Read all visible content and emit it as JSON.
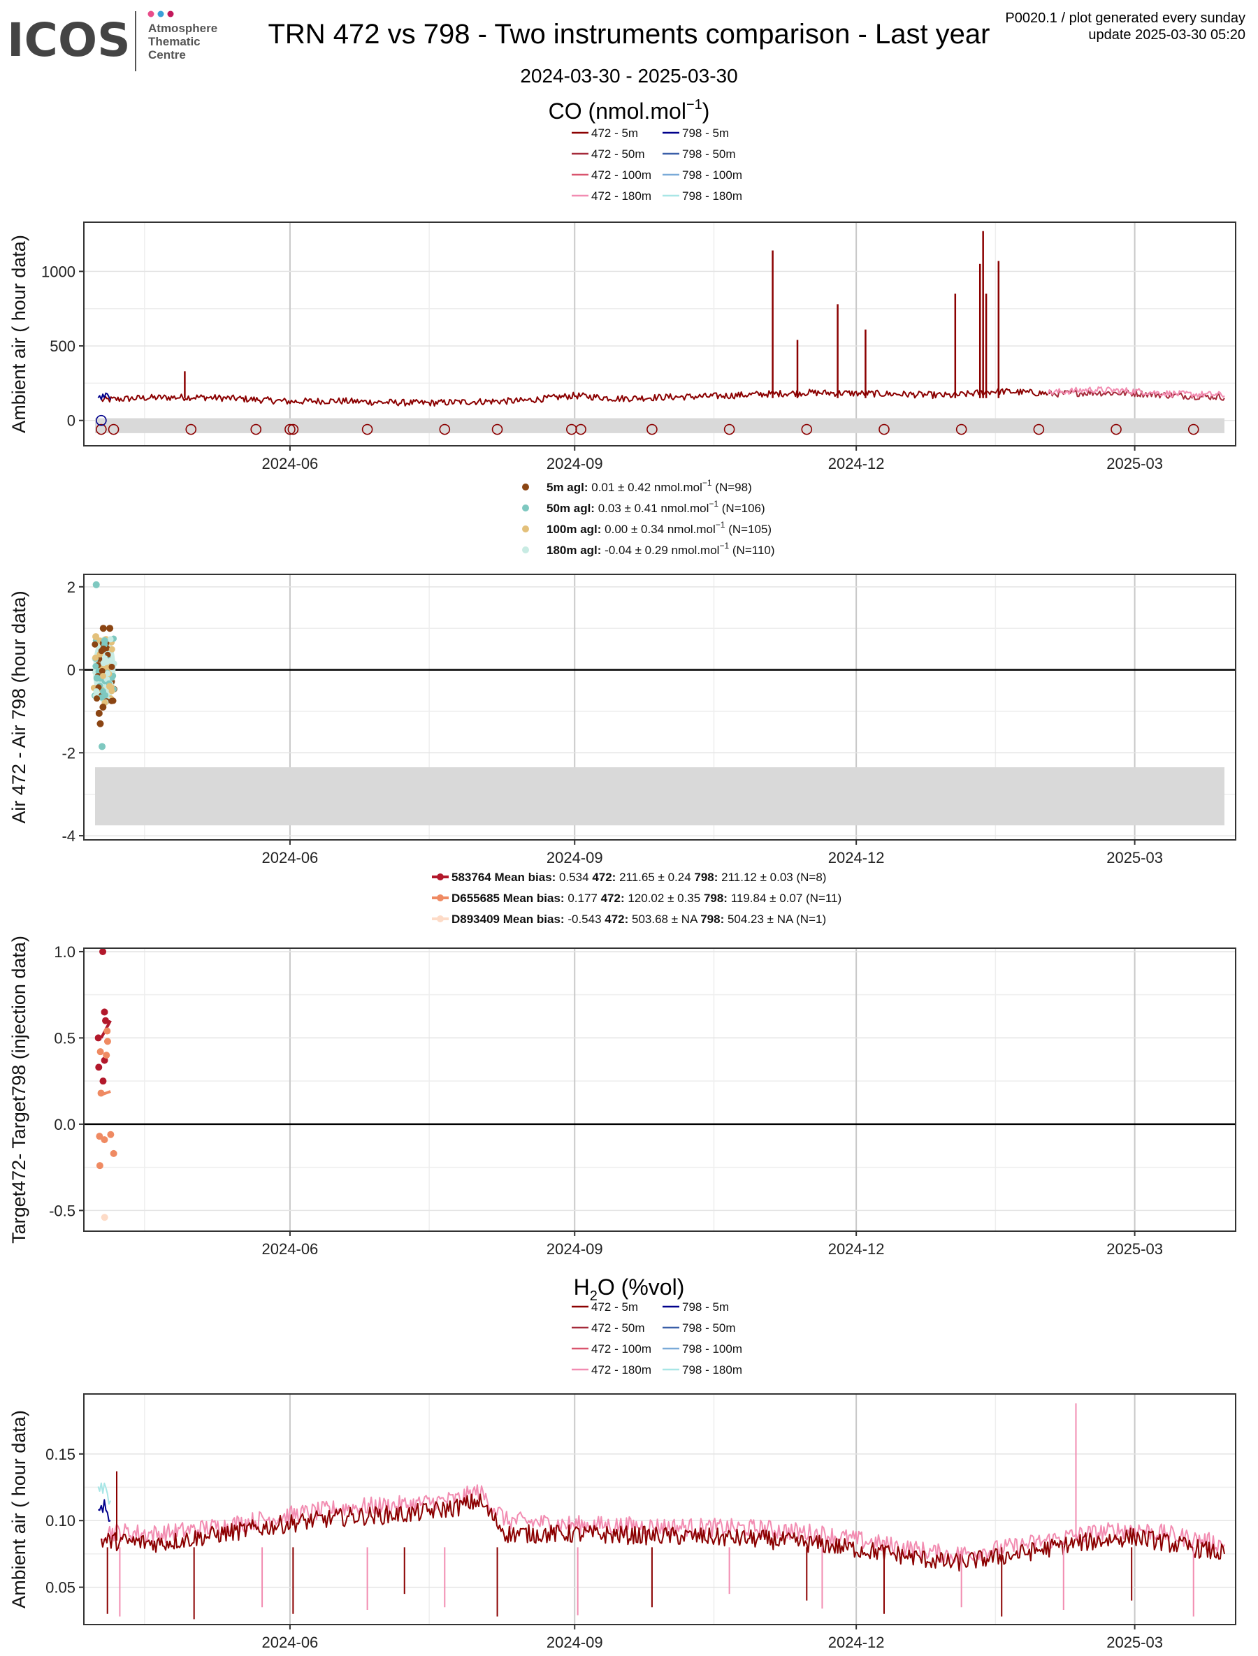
{
  "header": {
    "logo_text": "ICOS",
    "logo_sub": [
      "Atmosphere",
      "Thematic",
      "Centre"
    ],
    "logo_dot_colors": [
      "#e84d8a",
      "#3aa0d8",
      "#c2185b"
    ],
    "title": "TRN 472 vs 798 - Two instruments comparison - Last year",
    "date_range": "2024-03-30 - 2025-03-30",
    "meta_line1": "P0020.1 / plot generated every sunday",
    "meta_line2": "update  2025-03-30 05:20"
  },
  "x_axis": {
    "start": "2024-03-30",
    "end": "2025-03-30",
    "ticks": [
      "2024-06-01",
      "2024-09-01",
      "2024-12-01",
      "2025-03-01"
    ],
    "tick_labels": [
      "2024-06",
      "2024-09",
      "2024-12",
      "2025-03"
    ]
  },
  "chart_data": [
    {
      "type": "line",
      "title_base": "CO (nmol.mol",
      "title_exp": "−1",
      "title_end": ")",
      "ylabel": "Ambient air ( hour data)",
      "ylim": [
        -170,
        1330
      ],
      "yticks": [
        0,
        500,
        1000
      ],
      "legend": [
        {
          "name": "472 - 5m",
          "color": "#8b0000"
        },
        {
          "name": "798 - 5m",
          "color": "#00008b"
        },
        {
          "name": "472 - 50m",
          "color": "#a52a3a"
        },
        {
          "name": "798 - 50m",
          "color": "#3a5fa8"
        },
        {
          "name": "472 - 100m",
          "color": "#d9546e"
        },
        {
          "name": "798 - 100m",
          "color": "#7aaad8"
        },
        {
          "name": "472 - 180m",
          "color": "#f28cb1"
        },
        {
          "name": "798 - 180m",
          "color": "#a8e6e6"
        }
      ],
      "series": [
        {
          "name": "472 - 5m",
          "color": "#8b0000",
          "x": [
            "2024-04-01",
            "2024-04-15",
            "2024-05-01",
            "2024-05-15",
            "2024-06-01",
            "2024-06-15",
            "2024-07-01",
            "2024-07-15",
            "2024-08-01",
            "2024-08-15",
            "2024-09-01",
            "2024-09-15",
            "2024-10-01",
            "2024-10-15",
            "2024-11-01",
            "2024-11-15",
            "2024-12-01",
            "2024-12-15",
            "2025-01-01",
            "2025-01-15",
            "2025-02-01"
          ],
          "y": [
            130,
            145,
            150,
            140,
            120,
            125,
            115,
            110,
            120,
            125,
            160,
            140,
            150,
            155,
            170,
            180,
            175,
            170,
            160,
            190,
            175
          ]
        },
        {
          "name": "472 - 50m",
          "color": "#a52a3a",
          "x": [
            "2025-02-01",
            "2025-02-15",
            "2025-03-01",
            "2025-03-15",
            "2025-03-30"
          ],
          "y": [
            170,
            180,
            175,
            160,
            150
          ]
        },
        {
          "name": "472 - 180m",
          "color": "#f28cb1",
          "x": [
            "2025-02-01",
            "2025-02-15",
            "2025-03-01",
            "2025-03-15",
            "2025-03-30"
          ],
          "y": [
            180,
            200,
            190,
            170,
            165
          ]
        },
        {
          "name": "798 - 5m",
          "color": "#00008b",
          "x": [
            "2024-03-31",
            "2024-04-02",
            "2024-04-04"
          ],
          "y": [
            150,
            160,
            140
          ]
        }
      ],
      "peaks": {
        "x": [
          "2024-04-28",
          "2024-11-04",
          "2024-11-12",
          "2024-11-25",
          "2024-12-04",
          "2025-01-02",
          "2025-01-10",
          "2025-01-11",
          "2025-01-12",
          "2025-01-16"
        ],
        "y": [
          330,
          1140,
          540,
          780,
          610,
          850,
          1050,
          1270,
          850,
          1070
        ]
      },
      "band": [
        -85,
        15
      ],
      "calibration_x": [
        "2024-04-01",
        "2024-04-05",
        "2024-04-30",
        "2024-05-21",
        "2024-06-01",
        "2024-06-02",
        "2024-06-26",
        "2024-07-21",
        "2024-08-07",
        "2024-08-31",
        "2024-09-03",
        "2024-09-26",
        "2024-10-21",
        "2024-11-15",
        "2024-12-10",
        "2025-01-04",
        "2025-01-29",
        "2025-02-23",
        "2025-03-20"
      ],
      "calibration_y": -60,
      "open_circle_798": {
        "x": "2024-04-01",
        "y": 0
      }
    },
    {
      "type": "scatter",
      "ylabel": "Air 472 - Air 798 (hour data)",
      "ylim": [
        -4.1,
        2.3
      ],
      "yticks": [
        -4,
        -2,
        0,
        2
      ],
      "legend": [
        {
          "height": "5m agl:",
          "stats": "0.01 ± 0.42 nmol.mol",
          "n": "(N=98)",
          "color": "#8b4513"
        },
        {
          "height": "50m agl:",
          "stats": "0.03 ± 0.41 nmol.mol",
          "n": "(N=106)",
          "color": "#7ec8c0"
        },
        {
          "height": "100m agl:",
          "stats": "0.00 ± 0.34 nmol.mol",
          "n": "(N=105)",
          "color": "#e3c07a"
        },
        {
          "height": "180m agl:",
          "stats": "-0.04 ± 0.29 nmol.mol",
          "n": "(N=110)",
          "color": "#c8ebe3"
        }
      ],
      "legend_exp": "−1",
      "points": [
        {
          "x": "2024-03-31",
          "y": 2.05,
          "color": "#7ec8c0"
        },
        {
          "x": "2024-04-01",
          "y": 1.0,
          "color": "#8b4513"
        },
        {
          "x": "2024-04-03",
          "y": 1.0,
          "color": "#8b4513"
        },
        {
          "x": "2024-03-31",
          "y": 0.8,
          "color": "#e3c07a"
        },
        {
          "x": "2024-04-02",
          "y": 0.7,
          "color": "#7ec8c0"
        },
        {
          "x": "2024-04-01",
          "y": 0.5,
          "color": "#8b4513"
        },
        {
          "x": "2024-04-02",
          "y": 0.2,
          "color": "#c8ebe3"
        },
        {
          "x": "2024-03-31",
          "y": -0.2,
          "color": "#7ec8c0"
        },
        {
          "x": "2024-04-03",
          "y": -0.4,
          "color": "#e3c07a"
        },
        {
          "x": "2024-04-01",
          "y": -0.9,
          "color": "#8b4513"
        },
        {
          "x": "2024-03-31",
          "y": -1.05,
          "color": "#8b4513"
        },
        {
          "x": "2024-04-01",
          "y": -1.3,
          "color": "#8b4513"
        },
        {
          "x": "2024-04-02",
          "y": -1.85,
          "color": "#7ec8c0"
        }
      ],
      "band": [
        -3.75,
        -2.35
      ]
    },
    {
      "type": "scatter",
      "ylabel": "Target472- Target798 (injection data)",
      "ylim": [
        -0.62,
        1.02
      ],
      "yticks": [
        -0.5,
        0.0,
        0.5,
        1.0
      ],
      "ytick_labels": [
        "-0.5",
        "0.0",
        "0.5",
        "1.0"
      ],
      "legend": [
        {
          "id": "583764",
          "bias": "0.534",
          "v472": "211.65 ± 0.24",
          "v798": "211.12 ± 0.03",
          "n": "(N=8)",
          "color": "#b2182b"
        },
        {
          "id": "D655685",
          "bias": "0.177",
          "v472": "120.02 ± 0.35",
          "v798": "119.84 ± 0.07",
          "n": "(N=11)",
          "color": "#ef8a62"
        },
        {
          "id": "D893409",
          "bias": "-0.543",
          "v472": "503.68 ±  NA",
          "v798": "504.23 ±  NA",
          "n": "(N=1)",
          "color": "#fddbc7"
        }
      ],
      "labels": {
        "mean_bias": "Mean bias:",
        "k472": "472:",
        "k798": "798:"
      },
      "points": [
        {
          "x": "2024-04-02",
          "y": 1.0,
          "color": "#b2182b"
        },
        {
          "x": "2024-04-01",
          "y": 0.65,
          "color": "#b2182b"
        },
        {
          "x": "2024-04-03",
          "y": 0.6,
          "color": "#b2182b"
        },
        {
          "x": "2024-04-01",
          "y": 0.5,
          "color": "#b2182b"
        },
        {
          "x": "2024-04-02",
          "y": 0.37,
          "color": "#b2182b"
        },
        {
          "x": "2024-04-01",
          "y": 0.33,
          "color": "#b2182b"
        },
        {
          "x": "2024-04-02",
          "y": 0.25,
          "color": "#b2182b"
        },
        {
          "x": "2024-04-02",
          "y": 0.54,
          "color": "#ef8a62"
        },
        {
          "x": "2024-04-03",
          "y": 0.48,
          "color": "#ef8a62"
        },
        {
          "x": "2024-03-31",
          "y": 0.42,
          "color": "#ef8a62"
        },
        {
          "x": "2024-04-03",
          "y": 0.4,
          "color": "#ef8a62"
        },
        {
          "x": "2024-04-02",
          "y": 0.18,
          "color": "#ef8a62"
        },
        {
          "x": "2024-04-04",
          "y": -0.06,
          "color": "#ef8a62"
        },
        {
          "x": "2024-04-01",
          "y": -0.07,
          "color": "#ef8a62"
        },
        {
          "x": "2024-04-01",
          "y": -0.09,
          "color": "#ef8a62"
        },
        {
          "x": "2024-04-04",
          "y": -0.17,
          "color": "#ef8a62"
        },
        {
          "x": "2024-03-31",
          "y": -0.24,
          "color": "#ef8a62"
        },
        {
          "x": "2024-04-02",
          "y": -0.54,
          "color": "#fddbc7"
        }
      ],
      "segments": [
        {
          "x": [
            "2024-04-01",
            "2024-04-04"
          ],
          "y": [
            0.5,
            0.6
          ],
          "color": "#b2182b"
        },
        {
          "x": [
            "2024-04-01",
            "2024-04-04"
          ],
          "y": [
            0.17,
            0.19
          ],
          "color": "#ef8a62"
        }
      ]
    },
    {
      "type": "line",
      "title_base": "H",
      "title_sub": "2",
      "title_end": "O (%vol)",
      "ylabel": "Ambient air ( hour data)",
      "ylim": [
        0.022,
        0.195
      ],
      "yticks": [
        0.05,
        0.1,
        0.15
      ],
      "ytick_labels": [
        "0.05",
        "0.10",
        "0.15"
      ],
      "legend": [
        {
          "name": "472 - 5m",
          "color": "#8b0000"
        },
        {
          "name": "798 - 5m",
          "color": "#00008b"
        },
        {
          "name": "472 - 50m",
          "color": "#a52a3a"
        },
        {
          "name": "798 - 50m",
          "color": "#3a5fa8"
        },
        {
          "name": "472 - 100m",
          "color": "#d9546e"
        },
        {
          "name": "798 - 100m",
          "color": "#7aaad8"
        },
        {
          "name": "472 - 180m",
          "color": "#f28cb1"
        },
        {
          "name": "798 - 180m",
          "color": "#a8e6e6"
        }
      ],
      "series": [
        {
          "name": "472 - 180m",
          "color": "#f28cb1",
          "x": [
            "2024-04-01",
            "2024-04-20",
            "2024-05-10",
            "2024-06-01",
            "2024-06-20",
            "2024-07-10",
            "2024-07-25",
            "2024-08-01",
            "2024-08-10",
            "2024-09-01",
            "2024-09-20",
            "2024-10-10",
            "2024-11-01",
            "2024-11-20",
            "2024-12-10",
            "2025-01-01",
            "2025-01-20",
            "2025-02-10",
            "2025-03-01",
            "2025-03-30"
          ],
          "y": [
            0.092,
            0.09,
            0.096,
            0.104,
            0.11,
            0.112,
            0.116,
            0.122,
            0.1,
            0.097,
            0.096,
            0.095,
            0.094,
            0.09,
            0.082,
            0.074,
            0.08,
            0.089,
            0.094,
            0.082
          ]
        },
        {
          "name": "472 - 5m",
          "color": "#8b0000",
          "x": [
            "2024-04-01",
            "2024-04-20",
            "2024-05-10",
            "2024-06-01",
            "2024-06-20",
            "2024-07-10",
            "2024-07-25",
            "2024-08-01",
            "2024-08-10",
            "2024-09-01",
            "2024-09-20",
            "2024-10-10",
            "2024-11-01",
            "2024-11-20",
            "2024-12-10",
            "2025-01-01",
            "2025-01-20",
            "2025-02-10",
            "2025-03-01",
            "2025-03-30"
          ],
          "y": [
            0.085,
            0.083,
            0.09,
            0.098,
            0.103,
            0.105,
            0.11,
            0.115,
            0.09,
            0.09,
            0.089,
            0.088,
            0.086,
            0.082,
            0.076,
            0.068,
            0.074,
            0.083,
            0.088,
            0.075
          ]
        },
        {
          "name": "798 - 5m",
          "color": "#00008b",
          "x": [
            "2024-03-31",
            "2024-04-02",
            "2024-04-04"
          ],
          "y": [
            0.105,
            0.11,
            0.1
          ]
        },
        {
          "name": "798 - 180m",
          "color": "#a8e6e6",
          "x": [
            "2024-03-31",
            "2024-04-02",
            "2024-04-04"
          ],
          "y": [
            0.12,
            0.125,
            0.115
          ]
        }
      ],
      "dips": {
        "x": [
          "2024-04-03",
          "2024-04-07",
          "2024-05-01",
          "2024-05-23",
          "2024-06-02",
          "2024-06-26",
          "2024-07-08",
          "2024-07-21",
          "2024-08-07",
          "2024-09-02",
          "2024-09-26",
          "2024-10-21",
          "2024-11-15",
          "2024-11-20",
          "2024-12-10",
          "2025-01-04",
          "2025-01-17",
          "2025-02-06",
          "2025-02-28",
          "2025-03-20"
        ],
        "y": [
          0.03,
          0.028,
          0.026,
          0.035,
          0.03,
          0.033,
          0.045,
          0.035,
          0.028,
          0.029,
          0.035,
          0.045,
          0.04,
          0.034,
          0.03,
          0.035,
          0.028,
          0.033,
          0.04,
          0.028
        ]
      },
      "spikes": {
        "x": [
          "2024-04-06",
          "2025-02-10"
        ],
        "y": [
          0.137,
          0.188
        ]
      }
    }
  ]
}
